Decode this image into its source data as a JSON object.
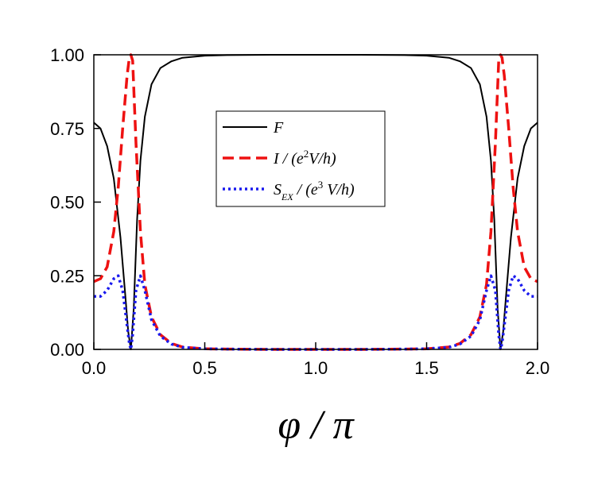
{
  "chart_data": {
    "type": "line",
    "title": "",
    "xlabel": "φ / π",
    "ylabel": "",
    "xlim": [
      0.0,
      2.0
    ],
    "ylim": [
      0.0,
      1.0
    ],
    "grid": false,
    "legend_position": "top-center",
    "x_ticks": [
      "0.0",
      "0.5",
      "1.0",
      "1.5",
      "2.0"
    ],
    "y_ticks": [
      "0.00",
      "0.25",
      "0.50",
      "0.75",
      "1.00"
    ],
    "series": [
      {
        "name": "F",
        "color": "#000000",
        "style": "solid",
        "x": [
          0.0,
          0.03,
          0.06,
          0.09,
          0.12,
          0.14,
          0.155,
          0.167,
          0.18,
          0.195,
          0.21,
          0.23,
          0.26,
          0.3,
          0.35,
          0.4,
          0.5,
          0.6,
          0.8,
          1.0,
          1.2,
          1.4,
          1.5,
          1.6,
          1.65,
          1.7,
          1.74,
          1.77,
          1.79,
          1.805,
          1.82,
          1.833,
          1.845,
          1.86,
          1.88,
          1.91,
          1.94,
          1.97,
          2.0
        ],
        "values": [
          0.77,
          0.75,
          0.69,
          0.58,
          0.38,
          0.2,
          0.06,
          0.0,
          0.14,
          0.44,
          0.64,
          0.79,
          0.9,
          0.955,
          0.978,
          0.99,
          0.997,
          0.999,
          1.0,
          1.0,
          1.0,
          0.999,
          0.997,
          0.99,
          0.978,
          0.955,
          0.9,
          0.79,
          0.64,
          0.44,
          0.14,
          0.0,
          0.06,
          0.2,
          0.38,
          0.58,
          0.69,
          0.75,
          0.77
        ]
      },
      {
        "name": "I / (e²V/h)",
        "color": "#ee1111",
        "style": "dashed",
        "x": [
          0.0,
          0.03,
          0.06,
          0.09,
          0.11,
          0.13,
          0.15,
          0.16,
          0.167,
          0.175,
          0.19,
          0.21,
          0.23,
          0.26,
          0.3,
          0.35,
          0.4,
          0.5,
          0.6,
          0.8,
          1.0,
          1.2,
          1.4,
          1.5,
          1.6,
          1.65,
          1.7,
          1.74,
          1.77,
          1.79,
          1.81,
          1.825,
          1.833,
          1.84,
          1.85,
          1.87,
          1.89,
          1.91,
          1.94,
          1.97,
          2.0
        ],
        "values": [
          0.23,
          0.24,
          0.28,
          0.4,
          0.55,
          0.75,
          0.93,
          0.99,
          1.0,
          0.98,
          0.7,
          0.4,
          0.22,
          0.11,
          0.05,
          0.02,
          0.008,
          0.002,
          0.001,
          0.0,
          0.0,
          0.0,
          0.001,
          0.002,
          0.008,
          0.02,
          0.05,
          0.11,
          0.22,
          0.4,
          0.7,
          0.98,
          1.0,
          0.99,
          0.93,
          0.75,
          0.55,
          0.4,
          0.28,
          0.24,
          0.23
        ]
      },
      {
        "name": "S_EX / (e³ V/h)",
        "color": "#1a1aee",
        "style": "dotted",
        "x": [
          0.0,
          0.03,
          0.06,
          0.09,
          0.11,
          0.13,
          0.15,
          0.16,
          0.167,
          0.175,
          0.19,
          0.21,
          0.23,
          0.26,
          0.3,
          0.35,
          0.4,
          0.5,
          0.6,
          0.8,
          1.0,
          1.2,
          1.4,
          1.5,
          1.6,
          1.65,
          1.7,
          1.74,
          1.77,
          1.79,
          1.81,
          1.825,
          1.833,
          1.84,
          1.85,
          1.87,
          1.89,
          1.91,
          1.94,
          1.97,
          2.0
        ],
        "values": [
          0.18,
          0.18,
          0.2,
          0.24,
          0.25,
          0.2,
          0.08,
          0.02,
          0.0,
          0.05,
          0.2,
          0.25,
          0.2,
          0.1,
          0.045,
          0.018,
          0.007,
          0.002,
          0.001,
          0.0,
          0.0,
          0.0,
          0.001,
          0.002,
          0.007,
          0.018,
          0.045,
          0.1,
          0.2,
          0.25,
          0.2,
          0.05,
          0.0,
          0.02,
          0.08,
          0.2,
          0.25,
          0.24,
          0.2,
          0.18,
          0.18
        ]
      }
    ]
  },
  "legend": {
    "f_label": "F",
    "i_label_prefix": "I / (e",
    "i_label_sup": "2",
    "i_label_suffix": "V/h)",
    "s_label_main": "S",
    "s_label_sub": "EX",
    "s_label_mid": " / (e",
    "s_label_sup": "3",
    "s_label_suffix": " V/h)"
  },
  "axis": {
    "x_title": "φ / π"
  }
}
